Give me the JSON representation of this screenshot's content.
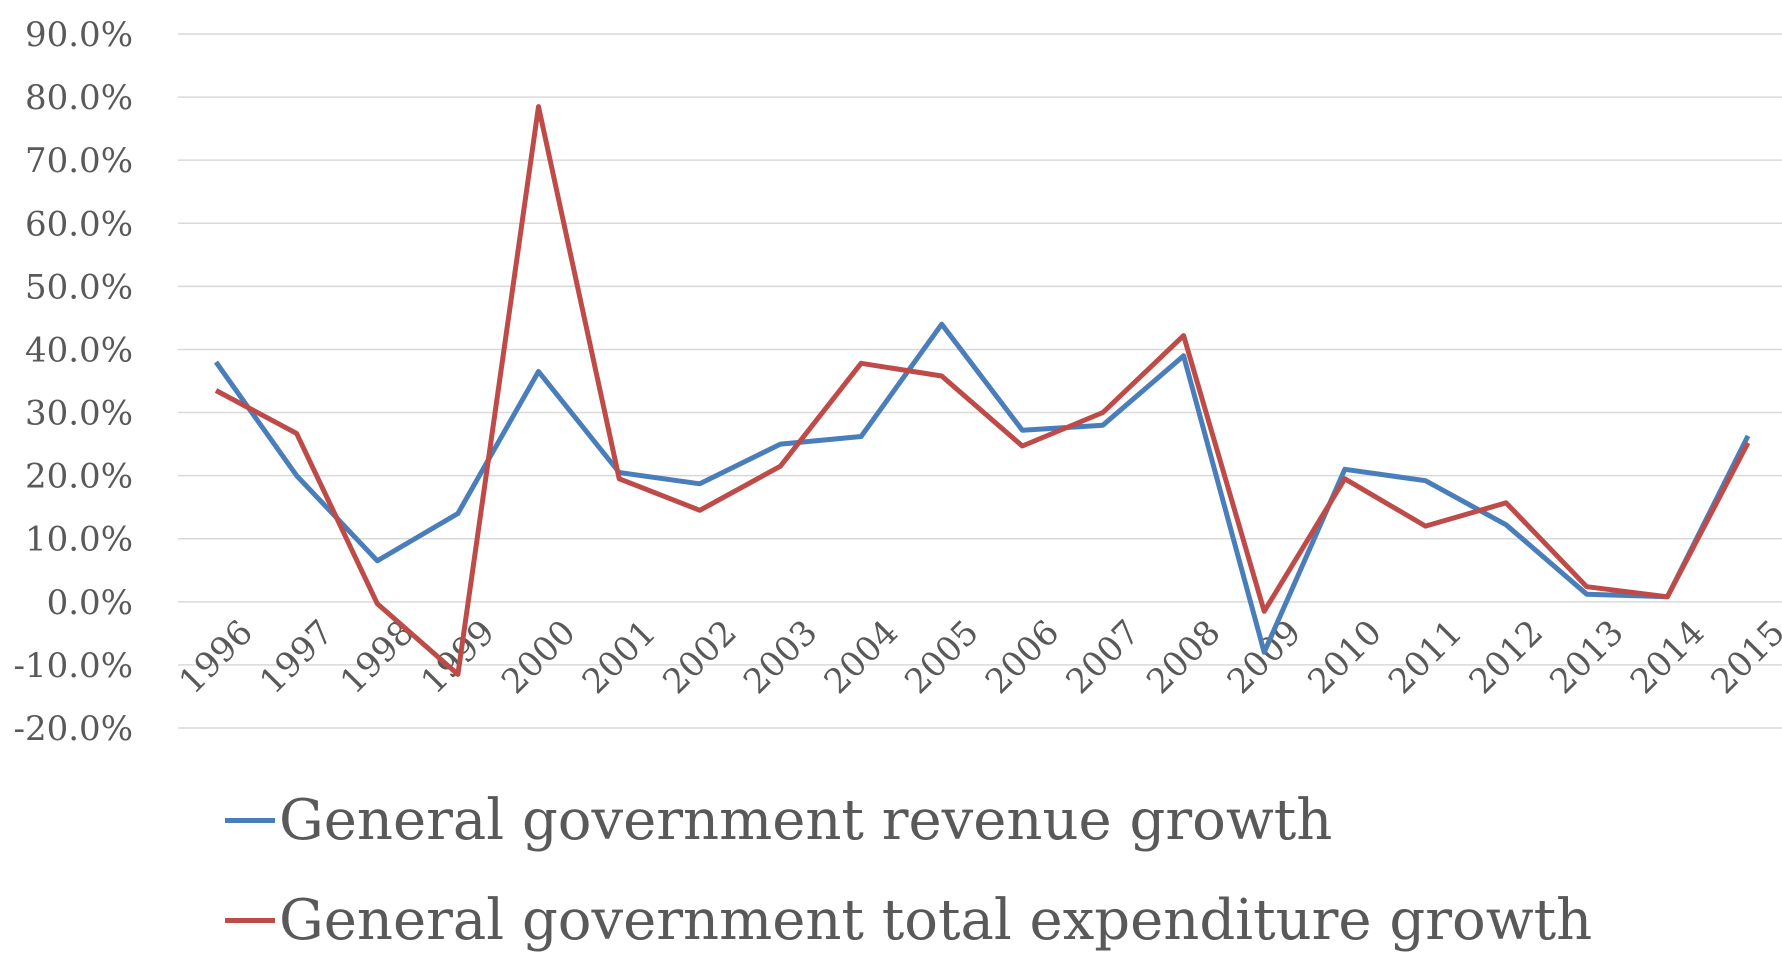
{
  "chart_data": {
    "type": "line",
    "title": "",
    "xlabel": "",
    "ylabel": "",
    "categories": [
      "1996",
      "1997",
      "1998",
      "1999",
      "2000",
      "2001",
      "2002",
      "2003",
      "2004",
      "2005",
      "2006",
      "2007",
      "2008",
      "2009",
      "2010",
      "2011",
      "2012",
      "2013",
      "2014",
      "2015"
    ],
    "yticks": [
      "90.0%",
      "80.0%",
      "70.0%",
      "60.0%",
      "50.0%",
      "40.0%",
      "30.0%",
      "20.0%",
      "10.0%",
      "0.0%",
      "-10.0%",
      "-20.0%"
    ],
    "ylim": [
      -20,
      90
    ],
    "grid": true,
    "legend_position": "bottom",
    "series": [
      {
        "name": "General government revenue growth",
        "color": "#4a7ebb",
        "values": [
          38.0,
          20.0,
          6.5,
          14.0,
          36.5,
          20.5,
          18.7,
          25.0,
          26.2,
          44.0,
          27.2,
          28.0,
          39.0,
          -8.0,
          21.0,
          19.2,
          12.2,
          1.2,
          0.8,
          26.3
        ]
      },
      {
        "name": "General government total expenditure growth",
        "color": "#be4b48",
        "values": [
          33.5,
          26.7,
          -0.3,
          -11.5,
          78.5,
          19.5,
          14.5,
          21.5,
          37.8,
          35.8,
          24.7,
          30.0,
          42.2,
          -1.5,
          19.5,
          12.0,
          15.7,
          2.4,
          0.8,
          25.2
        ]
      }
    ]
  }
}
